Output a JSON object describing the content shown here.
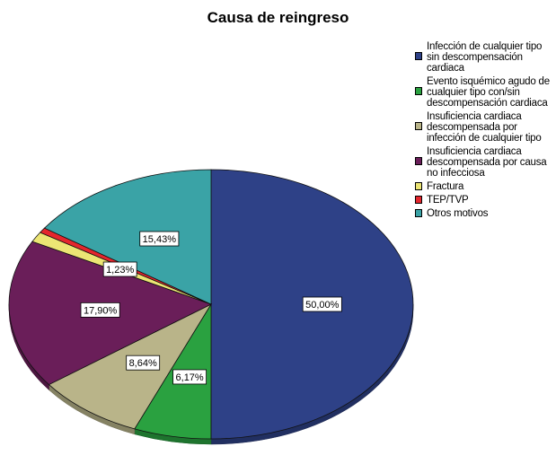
{
  "chart_data": {
    "type": "pie",
    "title": "Causa de reingreso",
    "legend_position": "right",
    "slices": [
      {
        "label": "Infección de cualquier tipo sin descompensación cardiaca",
        "value": 50.0,
        "display": "50,00%",
        "color": "#2E4187"
      },
      {
        "label": "Evento isquémico agudo de cualquier tipo con/sin descompensación cardiaca",
        "value": 6.17,
        "display": "6,17%",
        "color": "#2AA140"
      },
      {
        "label": "Insuficiencia cardiaca descompensada por infección de cualquier tipo",
        "value": 8.64,
        "display": "8,64%",
        "color": "#B9B489"
      },
      {
        "label": "Insuficiencia cardiaca descompensada por causa no infecciosa",
        "value": 17.9,
        "display": "17,90%",
        "color": "#6A1E59"
      },
      {
        "label": "Fractura",
        "value": 1.23,
        "display": "1,23%",
        "color": "#ECE574"
      },
      {
        "label": "TEP/TVP",
        "value": 0.62,
        "display": "",
        "color": "#E4262D"
      },
      {
        "label": "Otros motivos",
        "value": 15.43,
        "display": "15,43%",
        "color": "#3AA3A6"
      }
    ]
  },
  "legend": [
    {
      "lines": [
        "Infección de cualquier tipo",
        "sin descompensación",
        "cardiaca"
      ]
    },
    {
      "lines": [
        "Evento isquémico agudo de",
        "cualquier tipo con/sin",
        "descompensación cardiaca"
      ]
    },
    {
      "lines": [
        "Insuficiencia cardiaca",
        "descompensada por",
        "infección de cualquier tipo"
      ]
    },
    {
      "lines": [
        "Insuficiencia cardiaca",
        "descompensada por causa",
        "no infecciosa"
      ]
    },
    {
      "lines": [
        "Fractura"
      ]
    },
    {
      "lines": [
        "TEP/TVP"
      ]
    },
    {
      "lines": [
        "Otros motivos"
      ]
    }
  ]
}
